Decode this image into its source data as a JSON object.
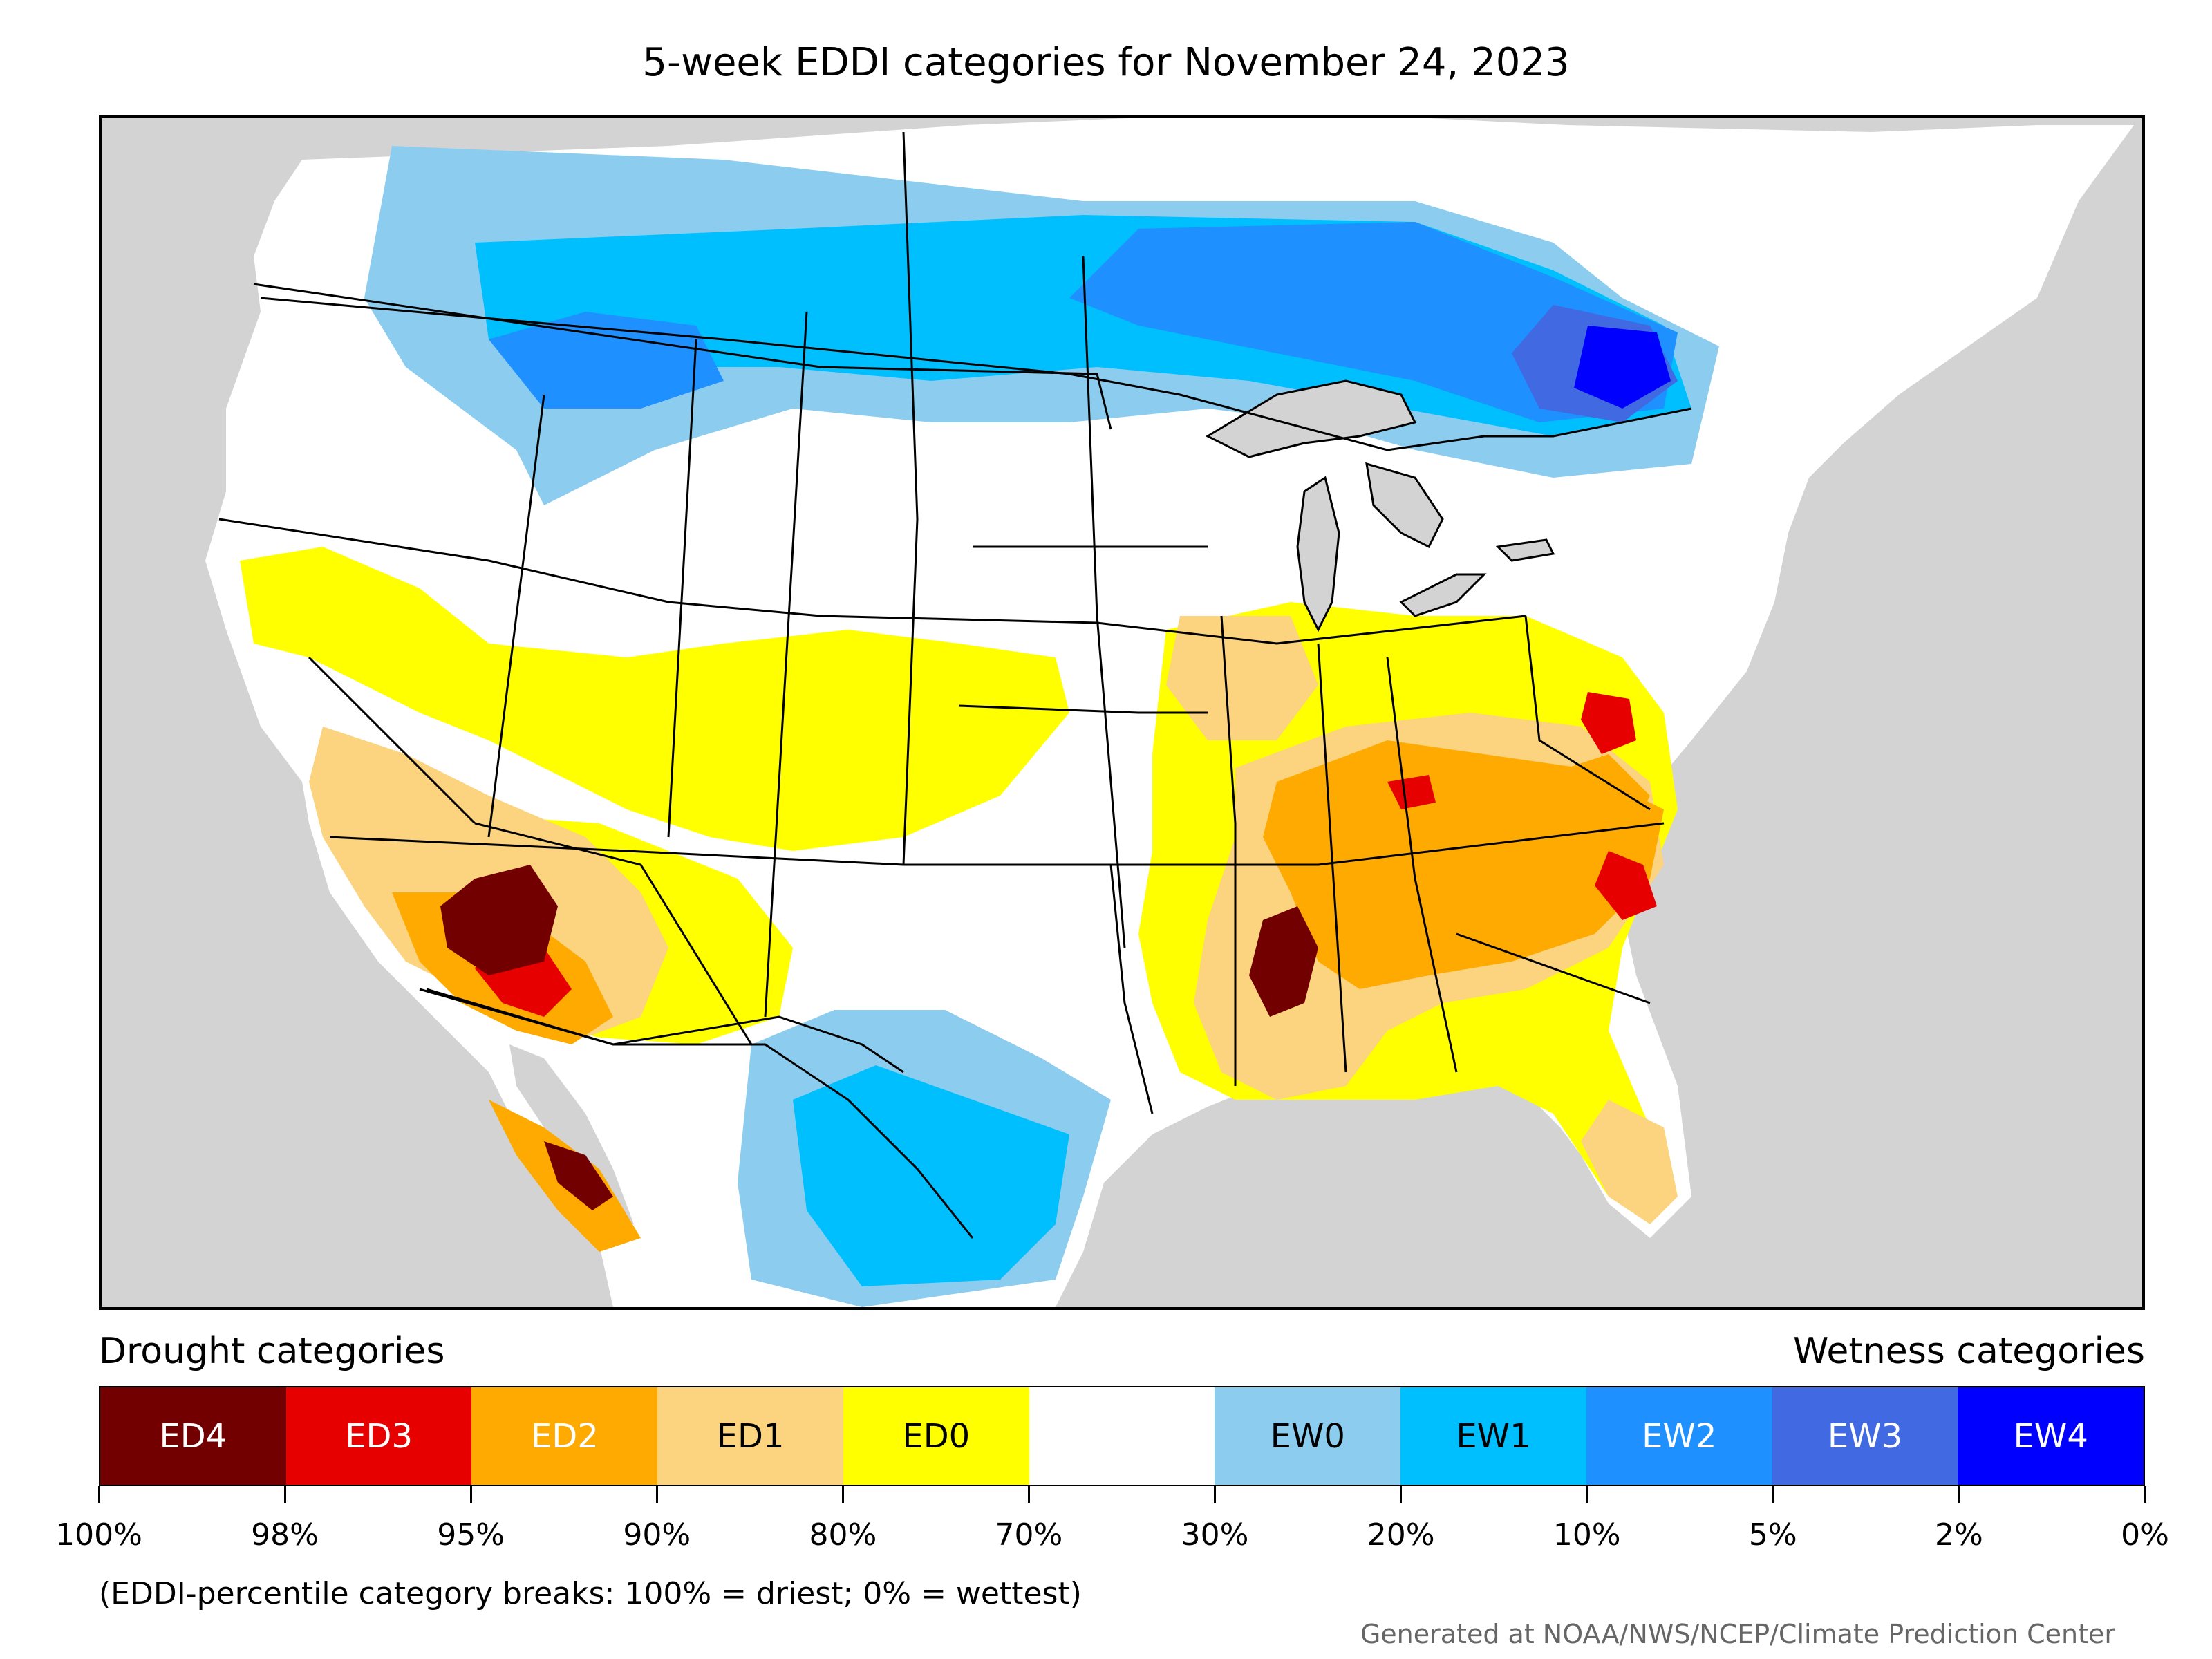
{
  "title": "5-week EDDI categories for November 24, 2023",
  "legend": {
    "drought_label": "Drought categories",
    "wetness_label": "Wetness categories",
    "categories": [
      {
        "label": "ED4",
        "color": "#730000",
        "text_color": "#ffffff"
      },
      {
        "label": "ED3",
        "color": "#e60000",
        "text_color": "#ffffff"
      },
      {
        "label": "ED2",
        "color": "#ffaa00",
        "text_color": "#ffffff"
      },
      {
        "label": "ED1",
        "color": "#fcd37f",
        "text_color": "#000000"
      },
      {
        "label": "ED0",
        "color": "#ffff00",
        "text_color": "#000000"
      },
      {
        "label": "",
        "color": "#ffffff",
        "text_color": "#000000"
      },
      {
        "label": "EW0",
        "color": "#8ccdef",
        "text_color": "#000000"
      },
      {
        "label": "EW1",
        "color": "#00bfff",
        "text_color": "#000000"
      },
      {
        "label": "EW2",
        "color": "#1e90ff",
        "text_color": "#ffffff"
      },
      {
        "label": "EW3",
        "color": "#4169e1",
        "text_color": "#ffffff"
      },
      {
        "label": "EW4",
        "color": "#0000ff",
        "text_color": "#ffffff"
      }
    ],
    "tick_labels": [
      "100%",
      "98%",
      "95%",
      "90%",
      "80%",
      "70%",
      "30%",
      "20%",
      "10%",
      "5%",
      "2%",
      "0%"
    ]
  },
  "footnote": "(EDDI-percentile category breaks: 100% = driest; 0% = wettest)",
  "credit": "Generated at NOAA/NWS/NCEP/Climate Prediction Center",
  "map": {
    "background_color": "#d3d3d3",
    "land_color": "#ffffff",
    "lake_color": "#d3d3d3"
  }
}
